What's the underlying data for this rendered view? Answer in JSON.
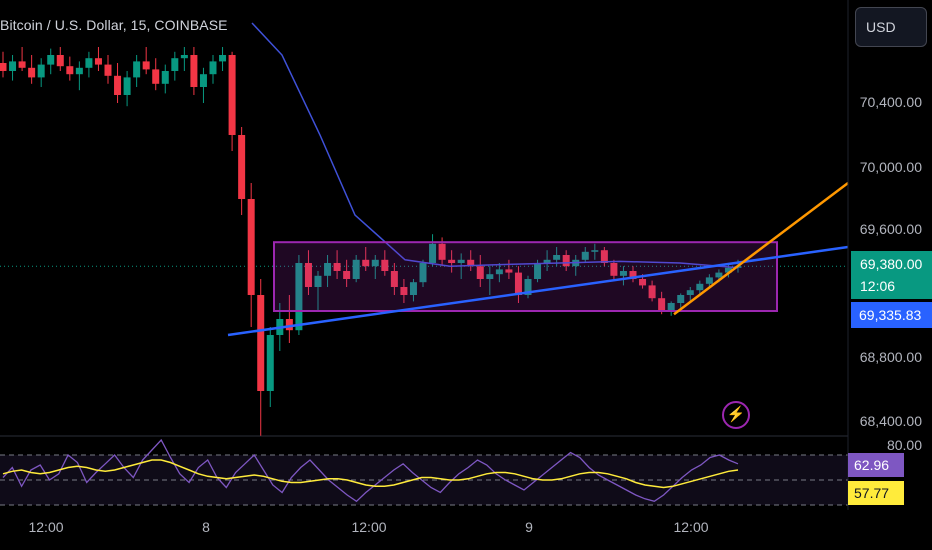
{
  "header": {
    "title": "Bitcoin / U.S. Dollar, 15, COINBASE",
    "currency": "USD"
  },
  "y_axis": {
    "labels": [
      "70,400.00",
      "70,000.00",
      "69,600.00",
      "68,800.00",
      "68,400.00"
    ]
  },
  "badges": {
    "price": "69,380.00",
    "countdown": "12:06",
    "trendline_price": "69,335.83",
    "rsi_value": "62.96",
    "rsi_ma_value": "57.77"
  },
  "rsi_axis": {
    "top_label": "80.00"
  },
  "x_axis": {
    "labels": [
      "12:00",
      "8",
      "12:00",
      "9",
      "12:00"
    ]
  },
  "colors": {
    "up": "#089981",
    "down": "#f23645",
    "ma": "#3f51d8",
    "trendline": "#2962ff",
    "wedge": "#ff9800",
    "box": "#9c27b0",
    "rsi": "#7e57c2",
    "rsi_ma": "#ffeb3b"
  },
  "icons": {
    "alert": "lightning-icon"
  },
  "chart_data": {
    "type": "candlestick",
    "title": "Bitcoin / U.S. Dollar, 15, COINBASE",
    "price_axis_range": [
      68300,
      70750
    ],
    "last_price": 69380.0,
    "ohlc_approx": [
      [
        70650,
        70720,
        70560,
        70600
      ],
      [
        70600,
        70700,
        70540,
        70660
      ],
      [
        70660,
        70750,
        70600,
        70620
      ],
      [
        70620,
        70700,
        70520,
        70560
      ],
      [
        70560,
        70680,
        70500,
        70640
      ],
      [
        70640,
        70740,
        70580,
        70700
      ],
      [
        70700,
        70750,
        70600,
        70630
      ],
      [
        70630,
        70690,
        70540,
        70580
      ],
      [
        70580,
        70660,
        70480,
        70620
      ],
      [
        70620,
        70720,
        70560,
        70680
      ],
      [
        70680,
        70750,
        70600,
        70640
      ],
      [
        70640,
        70700,
        70520,
        70570
      ],
      [
        70570,
        70650,
        70400,
        70450
      ],
      [
        70450,
        70600,
        70380,
        70560
      ],
      [
        70560,
        70700,
        70500,
        70660
      ],
      [
        70660,
        70750,
        70580,
        70610
      ],
      [
        70610,
        70680,
        70480,
        70520
      ],
      [
        70520,
        70640,
        70460,
        70600
      ],
      [
        70600,
        70720,
        70540,
        70680
      ],
      [
        70680,
        70750,
        70600,
        70700
      ],
      [
        70700,
        70750,
        70450,
        70500
      ],
      [
        70500,
        70620,
        70400,
        70580
      ],
      [
        70580,
        70700,
        70520,
        70660
      ],
      [
        70660,
        70750,
        70600,
        70700
      ],
      [
        70700,
        70720,
        70100,
        70200
      ],
      [
        70200,
        70250,
        69700,
        69800
      ],
      [
        69800,
        69900,
        69000,
        69200
      ],
      [
        69200,
        69300,
        68320,
        68600
      ],
      [
        68600,
        69000,
        68500,
        68950
      ],
      [
        68950,
        69150,
        68850,
        69050
      ],
      [
        69050,
        69200,
        68900,
        68980
      ],
      [
        68980,
        69450,
        68950,
        69400
      ],
      [
        69400,
        69480,
        69200,
        69250
      ],
      [
        69250,
        69350,
        69100,
        69320
      ],
      [
        69320,
        69450,
        69250,
        69400
      ],
      [
        69400,
        69480,
        69300,
        69350
      ],
      [
        69350,
        69420,
        69250,
        69300
      ],
      [
        69300,
        69450,
        69280,
        69420
      ],
      [
        69420,
        69500,
        69350,
        69380
      ],
      [
        69380,
        69450,
        69300,
        69420
      ],
      [
        69420,
        69480,
        69320,
        69350
      ],
      [
        69350,
        69400,
        69200,
        69250
      ],
      [
        69250,
        69300,
        69150,
        69200
      ],
      [
        69200,
        69300,
        69160,
        69280
      ],
      [
        69280,
        69420,
        69250,
        69400
      ],
      [
        69400,
        69580,
        69380,
        69520
      ],
      [
        69520,
        69560,
        69380,
        69420
      ],
      [
        69420,
        69480,
        69340,
        69400
      ],
      [
        69400,
        69460,
        69300,
        69420
      ],
      [
        69420,
        69480,
        69350,
        69380
      ],
      [
        69380,
        69450,
        69250,
        69300
      ],
      [
        69300,
        69380,
        69200,
        69330
      ],
      [
        69330,
        69400,
        69280,
        69360
      ],
      [
        69360,
        69420,
        69300,
        69340
      ],
      [
        69340,
        69380,
        69150,
        69200
      ],
      [
        69200,
        69320,
        69180,
        69300
      ],
      [
        69300,
        69420,
        69280,
        69400
      ],
      [
        69400,
        69480,
        69350,
        69420
      ],
      [
        69420,
        69500,
        69380,
        69450
      ],
      [
        69450,
        69480,
        69350,
        69380
      ],
      [
        69380,
        69450,
        69320,
        69420
      ],
      [
        69420,
        69500,
        69400,
        69470
      ],
      [
        69470,
        69520,
        69420,
        69480
      ],
      [
        69480,
        69500,
        69380,
        69400
      ],
      [
        69400,
        69420,
        69300,
        69320
      ],
      [
        69320,
        69380,
        69260,
        69350
      ],
      [
        69350,
        69380,
        69280,
        69300
      ],
      [
        69300,
        69330,
        69240,
        69260
      ],
      [
        69260,
        69290,
        69160,
        69180
      ],
      [
        69180,
        69220,
        69080,
        69100
      ],
      [
        69100,
        69160,
        69070,
        69150
      ],
      [
        69150,
        69210,
        69120,
        69200
      ],
      [
        69200,
        69250,
        69160,
        69230
      ],
      [
        69230,
        69290,
        69200,
        69270
      ],
      [
        69270,
        69330,
        69240,
        69310
      ],
      [
        69310,
        69360,
        69280,
        69340
      ],
      [
        69340,
        69400,
        69310,
        69370
      ],
      [
        69370,
        69420,
        69340,
        69380
      ]
    ],
    "moving_average": {
      "name": "",
      "approx_values": [
        70900,
        70700,
        70200,
        69700,
        69420,
        69380,
        69390,
        69400,
        69410,
        69400,
        69380,
        69370
      ]
    },
    "drawings": [
      {
        "type": "rectangle",
        "price_range": [
          69100,
          69530
        ]
      },
      {
        "type": "trendline",
        "from_price": 68950,
        "to_price": 69500
      },
      {
        "type": "trendline",
        "from_price": 69080,
        "to_price": 69900
      }
    ],
    "rsi": {
      "value": 62.96,
      "ma_value": 57.77,
      "levels": [
        70,
        50,
        30
      ],
      "top_label": 80
    }
  }
}
